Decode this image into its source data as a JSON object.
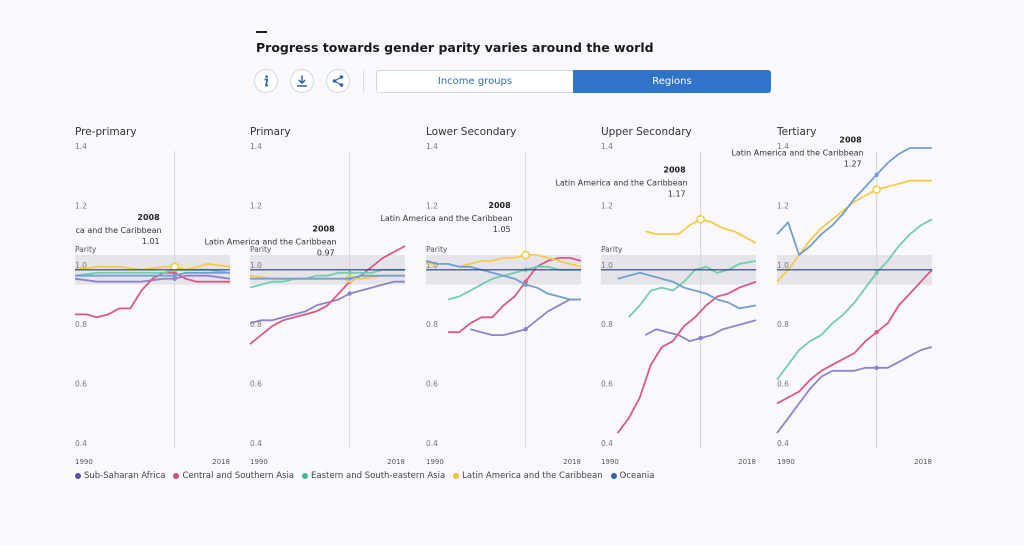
{
  "header": {
    "title": "Progress towards gender parity varies around the world"
  },
  "toolbar": {
    "info_icon": "info-icon",
    "download_icon": "download-icon",
    "share_icon": "share-icon"
  },
  "toggle": {
    "income_label": "Income groups",
    "regions_label": "Regions",
    "active": "Regions"
  },
  "colors": {
    "Sub-Saharan Africa": "#8e84cc",
    "Central and Southern Asia": "#d85a88",
    "Eastern and South-eastern Asia": "#74cbb1",
    "Latin America and the Caribbean": "#f5cb4a",
    "Oceania": "#6f9fd4",
    "parity_line": "#24407a",
    "band": "#e6e4ea"
  },
  "legend": [
    {
      "name": "Sub-Saharan Africa",
      "color": "#5b4fa8"
    },
    {
      "name": "Central and Southern Asia",
      "color": "#d04c7d"
    },
    {
      "name": "Eastern and South-eastern Asia",
      "color": "#3fb394"
    },
    {
      "name": "Latin America and the Caribbean",
      "color": "#f2c230"
    },
    {
      "name": "Oceania",
      "color": "#2e63a8"
    }
  ],
  "chart_data": [
    {
      "type": "line",
      "title": "Pre-primary",
      "ylabel": "Parity",
      "ylim": [
        0.4,
        1.4
      ],
      "yticks": [
        "1.4",
        "1.2",
        "1.0",
        "0.8",
        "0.6",
        "0.4"
      ],
      "xlim": [
        1990,
        2018
      ],
      "xticks": [
        "1990",
        "2018"
      ],
      "highlight_year": 2008,
      "tooltip": {
        "year": "2008",
        "region": "Latin America and the Caribbean",
        "value": "1.01"
      },
      "series": [
        {
          "name": "Sub-Saharan Africa",
          "x": [
            1990,
            1994,
            1998,
            2002,
            2006,
            2008,
            2010,
            2014,
            2018
          ],
          "y": [
            0.97,
            0.96,
            0.96,
            0.96,
            0.97,
            0.97,
            0.98,
            0.98,
            0.97
          ]
        },
        {
          "name": "Central and Southern Asia",
          "x": [
            1990,
            1992,
            1994,
            1996,
            1998,
            2000,
            2002,
            2004,
            2006,
            2008,
            2010,
            2012,
            2014,
            2016,
            2018
          ],
          "y": [
            0.85,
            0.85,
            0.84,
            0.85,
            0.87,
            0.87,
            0.93,
            0.97,
            0.99,
            0.99,
            0.97,
            0.96,
            0.96,
            0.96,
            0.96
          ]
        },
        {
          "name": "Eastern and South-eastern Asia",
          "x": [
            1990,
            1994,
            1998,
            2002,
            2006,
            2008,
            2010,
            2014,
            2018
          ],
          "y": [
            0.98,
            0.99,
            0.99,
            0.99,
            0.99,
            1.0,
            1.0,
            1.0,
            0.99
          ]
        },
        {
          "name": "Latin America and the Caribbean",
          "x": [
            1990,
            1994,
            1998,
            2002,
            2006,
            2008,
            2010,
            2014,
            2018
          ],
          "y": [
            1.0,
            1.01,
            1.01,
            1.0,
            1.01,
            1.01,
            1.0,
            1.02,
            1.01
          ]
        },
        {
          "name": "Oceania",
          "x": [
            1990,
            1994,
            1998,
            2002,
            2006,
            2008,
            2010,
            2014,
            2018
          ],
          "y": [
            0.98,
            0.98,
            0.98,
            0.98,
            0.98,
            0.98,
            0.99,
            0.99,
            0.99
          ]
        }
      ]
    },
    {
      "type": "line",
      "title": "Primary",
      "ylabel": "Parity",
      "ylim": [
        0.4,
        1.4
      ],
      "yticks": [
        "1.4",
        "1.2",
        "1.0",
        "0.8",
        "0.6",
        "0.4"
      ],
      "xlim": [
        1990,
        2018
      ],
      "xticks": [
        "1990",
        "2018"
      ],
      "highlight_year": 2008,
      "tooltip": {
        "year": "2008",
        "region": "Latin America and the Caribbean",
        "value": "0.97"
      },
      "series": [
        {
          "name": "Sub-Saharan Africa",
          "x": [
            1990,
            1992,
            1994,
            1996,
            1998,
            2000,
            2002,
            2004,
            2006,
            2008,
            2010,
            2012,
            2014,
            2016,
            2018
          ],
          "y": [
            0.82,
            0.83,
            0.83,
            0.84,
            0.85,
            0.86,
            0.88,
            0.89,
            0.9,
            0.92,
            0.93,
            0.94,
            0.95,
            0.96,
            0.96
          ]
        },
        {
          "name": "Central and Southern Asia",
          "x": [
            1990,
            1992,
            1994,
            1996,
            1998,
            2000,
            2002,
            2004,
            2006,
            2008,
            2010,
            2012,
            2014,
            2016,
            2018
          ],
          "y": [
            0.75,
            0.78,
            0.81,
            0.83,
            0.84,
            0.85,
            0.86,
            0.88,
            0.92,
            0.96,
            0.98,
            1.01,
            1.04,
            1.06,
            1.08
          ]
        },
        {
          "name": "Eastern and South-eastern Asia",
          "x": [
            1990,
            1992,
            1994,
            1996,
            1998,
            2000,
            2002,
            2004,
            2006,
            2008,
            2010,
            2012,
            2014,
            2016,
            2018
          ],
          "y": [
            0.94,
            0.95,
            0.96,
            0.96,
            0.97,
            0.97,
            0.98,
            0.98,
            0.99,
            0.99,
            0.99,
            0.99,
            1.0,
            1.0,
            1.0
          ]
        },
        {
          "name": "Latin America and the Caribbean",
          "x": [
            1990,
            1994,
            1998,
            2002,
            2006,
            2008,
            2010,
            2014,
            2018
          ],
          "y": [
            0.98,
            0.97,
            0.97,
            0.97,
            0.97,
            0.97,
            0.97,
            0.98,
            0.98
          ]
        },
        {
          "name": "Oceania",
          "x": [
            1990,
            1994,
            1998,
            2002,
            2006,
            2008,
            2010,
            2014,
            2018
          ],
          "y": [
            0.97,
            0.97,
            0.97,
            0.97,
            0.97,
            0.97,
            0.98,
            0.98,
            0.98
          ]
        }
      ]
    },
    {
      "type": "line",
      "title": "Lower Secondary",
      "ylabel": "Parity",
      "ylim": [
        0.4,
        1.4
      ],
      "yticks": [
        "1.4",
        "1.2",
        "1.0",
        "0.8",
        "0.6",
        "0.4"
      ],
      "xlim": [
        1990,
        2018
      ],
      "xticks": [
        "1990",
        "2018"
      ],
      "highlight_year": 2008,
      "tooltip": {
        "year": "2008",
        "region": "Latin America and the Caribbean",
        "value": "1.05"
      },
      "series": [
        {
          "name": "Sub-Saharan Africa",
          "x": [
            1998,
            2000,
            2002,
            2004,
            2006,
            2008,
            2010,
            2012,
            2014,
            2016,
            2018
          ],
          "y": [
            0.8,
            0.79,
            0.78,
            0.78,
            0.79,
            0.8,
            0.83,
            0.86,
            0.88,
            0.9,
            0.9
          ]
        },
        {
          "name": "Central and Southern Asia",
          "x": [
            1994,
            1996,
            1998,
            2000,
            2002,
            2004,
            2006,
            2008,
            2010,
            2012,
            2014,
            2016,
            2018
          ],
          "y": [
            0.79,
            0.79,
            0.82,
            0.84,
            0.84,
            0.88,
            0.91,
            0.96,
            1.01,
            1.03,
            1.04,
            1.04,
            1.03
          ]
        },
        {
          "name": "Eastern and South-eastern Asia",
          "x": [
            1994,
            1996,
            1998,
            2000,
            2002,
            2004,
            2006,
            2008,
            2010,
            2012,
            2014,
            2016,
            2018
          ],
          "y": [
            0.9,
            0.91,
            0.93,
            0.95,
            0.97,
            0.98,
            0.99,
            1.0,
            1.01,
            1.01,
            1.0,
            1.0,
            1.0
          ]
        },
        {
          "name": "Latin America and the Caribbean",
          "x": [
            1990,
            1992,
            1994,
            1996,
            1998,
            2000,
            2002,
            2004,
            2006,
            2008,
            2010,
            2012,
            2014,
            2016,
            2018
          ],
          "y": [
            1.02,
            1.02,
            1.02,
            1.01,
            1.02,
            1.03,
            1.03,
            1.04,
            1.04,
            1.05,
            1.05,
            1.04,
            1.03,
            1.02,
            1.01
          ]
        },
        {
          "name": "Oceania",
          "x": [
            1990,
            1992,
            1994,
            1996,
            1998,
            2000,
            2002,
            2004,
            2006,
            2008,
            2010,
            2012,
            2014,
            2016,
            2018
          ],
          "y": [
            1.03,
            1.02,
            1.02,
            1.01,
            1.01,
            1.0,
            0.99,
            0.98,
            0.97,
            0.95,
            0.94,
            0.92,
            0.91,
            0.9,
            0.9
          ]
        }
      ]
    },
    {
      "type": "line",
      "title": "Upper Secondary",
      "ylabel": "Parity",
      "ylim": [
        0.4,
        1.4
      ],
      "yticks": [
        "1.4",
        "1.2",
        "1.0",
        "0.8",
        "0.6",
        "0.4"
      ],
      "xlim": [
        1990,
        2018
      ],
      "xticks": [
        "1990",
        "2018"
      ],
      "highlight_year": 2008,
      "tooltip": {
        "year": "2008",
        "region": "Latin America and the Caribbean",
        "value": "1.17"
      },
      "series": [
        {
          "name": "Sub-Saharan Africa",
          "x": [
            1998,
            2000,
            2002,
            2004,
            2006,
            2008,
            2010,
            2012,
            2014,
            2016,
            2018
          ],
          "y": [
            0.78,
            0.8,
            0.79,
            0.78,
            0.76,
            0.77,
            0.78,
            0.8,
            0.81,
            0.82,
            0.83
          ]
        },
        {
          "name": "Central and Southern Asia",
          "x": [
            1993,
            1995,
            1997,
            1999,
            2001,
            2003,
            2005,
            2007,
            2009,
            2011,
            2013,
            2015,
            2018
          ],
          "y": [
            0.45,
            0.5,
            0.57,
            0.68,
            0.74,
            0.76,
            0.81,
            0.84,
            0.88,
            0.91,
            0.92,
            0.94,
            0.96
          ]
        },
        {
          "name": "Eastern and South-eastern Asia",
          "x": [
            1995,
            1997,
            1999,
            2001,
            2003,
            2005,
            2007,
            2009,
            2011,
            2013,
            2015,
            2018
          ],
          "y": [
            0.84,
            0.88,
            0.93,
            0.94,
            0.93,
            0.96,
            1.0,
            1.01,
            0.99,
            1.0,
            1.02,
            1.03
          ]
        },
        {
          "name": "Latin America and the Caribbean",
          "x": [
            1998,
            2000,
            2002,
            2004,
            2006,
            2008,
            2010,
            2012,
            2014,
            2016,
            2018
          ],
          "y": [
            1.13,
            1.12,
            1.12,
            1.12,
            1.15,
            1.17,
            1.16,
            1.14,
            1.13,
            1.11,
            1.09
          ]
        },
        {
          "name": "Oceania",
          "x": [
            1993,
            1995,
            1997,
            1999,
            2001,
            2003,
            2005,
            2007,
            2009,
            2011,
            2013,
            2015,
            2018
          ],
          "y": [
            0.97,
            0.98,
            0.99,
            0.98,
            0.97,
            0.96,
            0.94,
            0.93,
            0.92,
            0.9,
            0.89,
            0.87,
            0.88
          ]
        }
      ]
    },
    {
      "type": "line",
      "title": "Tertiary",
      "ylabel": "",
      "ylim": [
        0.4,
        1.4
      ],
      "yticks": [
        "1.4",
        "1.2",
        "1.0",
        "0.8",
        "0.6",
        "0.4"
      ],
      "xlim": [
        1990,
        2018
      ],
      "xticks": [
        "1990",
        "2018"
      ],
      "highlight_year": 2008,
      "tooltip": {
        "year": "2008",
        "region": "Latin America and the Caribbean",
        "value": "1.27"
      },
      "series": [
        {
          "name": "Sub-Saharan Africa",
          "x": [
            1990,
            1992,
            1994,
            1996,
            1998,
            2000,
            2002,
            2004,
            2006,
            2008,
            2010,
            2012,
            2014,
            2016,
            2018
          ],
          "y": [
            0.45,
            0.5,
            0.55,
            0.6,
            0.64,
            0.66,
            0.66,
            0.66,
            0.67,
            0.67,
            0.67,
            0.69,
            0.71,
            0.73,
            0.74
          ]
        },
        {
          "name": "Central and Southern Asia",
          "x": [
            1990,
            1992,
            1994,
            1996,
            1998,
            2000,
            2002,
            2004,
            2006,
            2008,
            2010,
            2012,
            2014,
            2016,
            2018
          ],
          "y": [
            0.55,
            0.57,
            0.59,
            0.63,
            0.66,
            0.68,
            0.7,
            0.72,
            0.76,
            0.79,
            0.82,
            0.88,
            0.92,
            0.96,
            1.0
          ]
        },
        {
          "name": "Eastern and South-eastern Asia",
          "x": [
            1990,
            1992,
            1994,
            1996,
            1998,
            2000,
            2002,
            2004,
            2006,
            2008,
            2010,
            2012,
            2014,
            2016,
            2018
          ],
          "y": [
            0.63,
            0.68,
            0.73,
            0.76,
            0.78,
            0.82,
            0.85,
            0.89,
            0.94,
            0.99,
            1.03,
            1.08,
            1.12,
            1.15,
            1.17
          ]
        },
        {
          "name": "Latin America and the Caribbean",
          "x": [
            1990,
            1992,
            1994,
            1996,
            1998,
            2000,
            2002,
            2004,
            2006,
            2008,
            2010,
            2012,
            2014,
            2016,
            2018
          ],
          "y": [
            0.96,
            1.0,
            1.05,
            1.1,
            1.14,
            1.17,
            1.2,
            1.23,
            1.25,
            1.27,
            1.28,
            1.29,
            1.3,
            1.3,
            1.3
          ]
        },
        {
          "name": "Oceania",
          "x": [
            1990,
            1992,
            1994,
            1996,
            1998,
            2000,
            2002,
            2004,
            2006,
            2008,
            2010,
            2012,
            2014,
            2016,
            2018
          ],
          "y": [
            1.12,
            1.16,
            1.05,
            1.08,
            1.12,
            1.15,
            1.19,
            1.24,
            1.28,
            1.32,
            1.36,
            1.39,
            1.41,
            1.41,
            1.41
          ]
        }
      ]
    }
  ]
}
